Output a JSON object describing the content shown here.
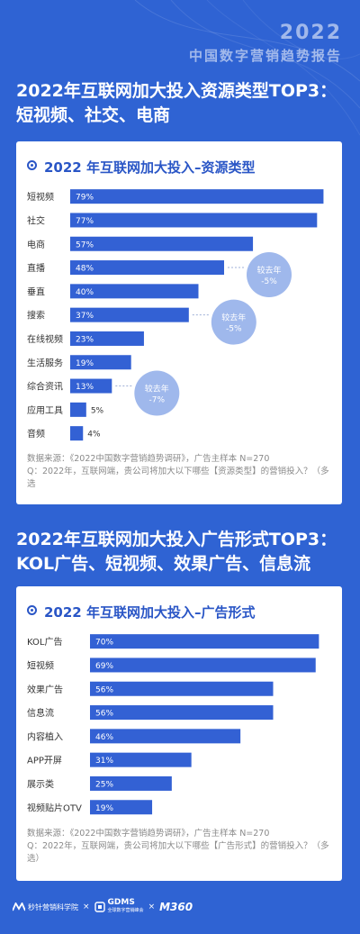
{
  "brand": {
    "year": "2022",
    "subtitle": "中国数字营销趋势报告"
  },
  "section1": {
    "heading_line1": "2022年互联网加大投入资源类型TOP3：",
    "heading_line2": "短视频、社交、电商"
  },
  "section2": {
    "heading_line1": "2022年互联网加大投入广告形式TOP3：",
    "heading_line2": "KOL广告、短视频、效果广告、信息流"
  },
  "chart_data": [
    {
      "type": "bar",
      "orientation": "horizontal",
      "title": "2022 年互联网加大投入–资源类型",
      "categories": [
        "短视频",
        "社交",
        "电商",
        "直播",
        "垂直",
        "搜索",
        "在线视频",
        "生活服务",
        "综合资讯",
        "应用工具",
        "音频"
      ],
      "values": [
        79,
        77,
        57,
        48,
        40,
        37,
        23,
        19,
        13,
        5,
        4
      ],
      "value_labels": [
        "79%",
        "77%",
        "57%",
        "48%",
        "40%",
        "37%",
        "23%",
        "19%",
        "13%",
        "5%",
        "4%"
      ],
      "annotations": [
        {
          "category": "直播",
          "text_line1": "较去年",
          "text_line2": "-5%"
        },
        {
          "category": "搜索",
          "text_line1": "较去年",
          "text_line2": "-5%"
        },
        {
          "category": "综合资讯",
          "text_line1": "较去年",
          "text_line2": "-7%"
        }
      ],
      "xlim": [
        0,
        80
      ],
      "source": "数据来源：《2022中国数字营销趋势调研》，广告主样本 N=270",
      "question": "Q：2022年，互联网端，贵公司将加大以下哪些【资源类型】的营销投入？（多选"
    },
    {
      "type": "bar",
      "orientation": "horizontal",
      "title": "2022 年互联网加大投入–广告形式",
      "categories": [
        "KOL广告",
        "短视频",
        "效果广告",
        "信息流",
        "内容植入",
        "APP开屏",
        "展示类",
        "视频贴片OTV"
      ],
      "values": [
        70,
        69,
        56,
        56,
        46,
        31,
        25,
        19
      ],
      "value_labels": [
        "70%",
        "69%",
        "56%",
        "56%",
        "46%",
        "31%",
        "25%",
        "19%"
      ],
      "xlim": [
        0,
        71
      ],
      "source": "数据来源：《2022中国数字营销趋势调研》，广告主样本 N=270",
      "question": "Q：2022年，互联网端，贵公司将加大以下哪些【广告形式】的营销投入？（多选）"
    }
  ],
  "footer": {
    "org1": "秒针营销科学院",
    "sep": "×",
    "org2": "GDMS",
    "org2_sub": "全球数字营销峰会",
    "org3": "M360"
  },
  "colors": {
    "background": "#2f63d3",
    "bar": "#3361d4",
    "annotation": "#9fb8ec",
    "title": "#2a56c6"
  }
}
